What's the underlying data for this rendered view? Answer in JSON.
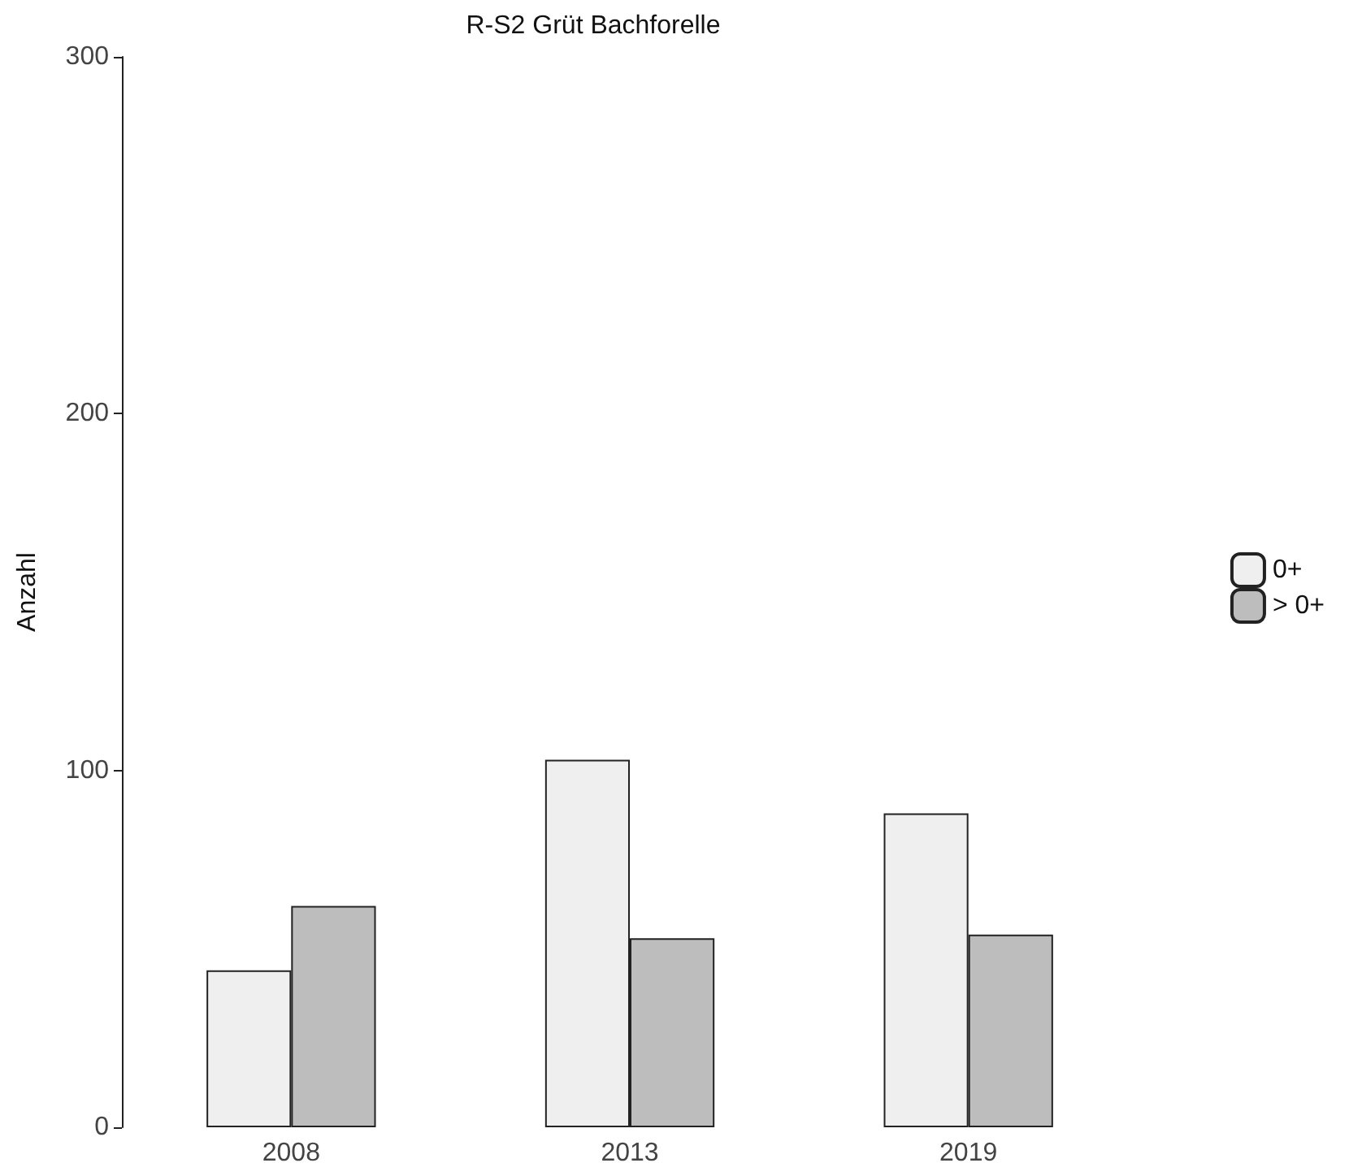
{
  "chart_data": {
    "type": "bar",
    "title": "R-S2 Grüt Bachforelle",
    "ylabel": "Anzahl",
    "categories": [
      "2008",
      "2013",
      "2019"
    ],
    "series": [
      {
        "name": "0+",
        "color": "#efefef",
        "values": [
          44,
          103,
          88
        ]
      },
      {
        "name": "> 0+",
        "color": "#bdbdbd",
        "values": [
          62,
          53,
          54
        ]
      }
    ],
    "ylim": [
      0,
      300
    ],
    "yticks": [
      0,
      100,
      200,
      300
    ],
    "grid": false,
    "legend": "right"
  }
}
